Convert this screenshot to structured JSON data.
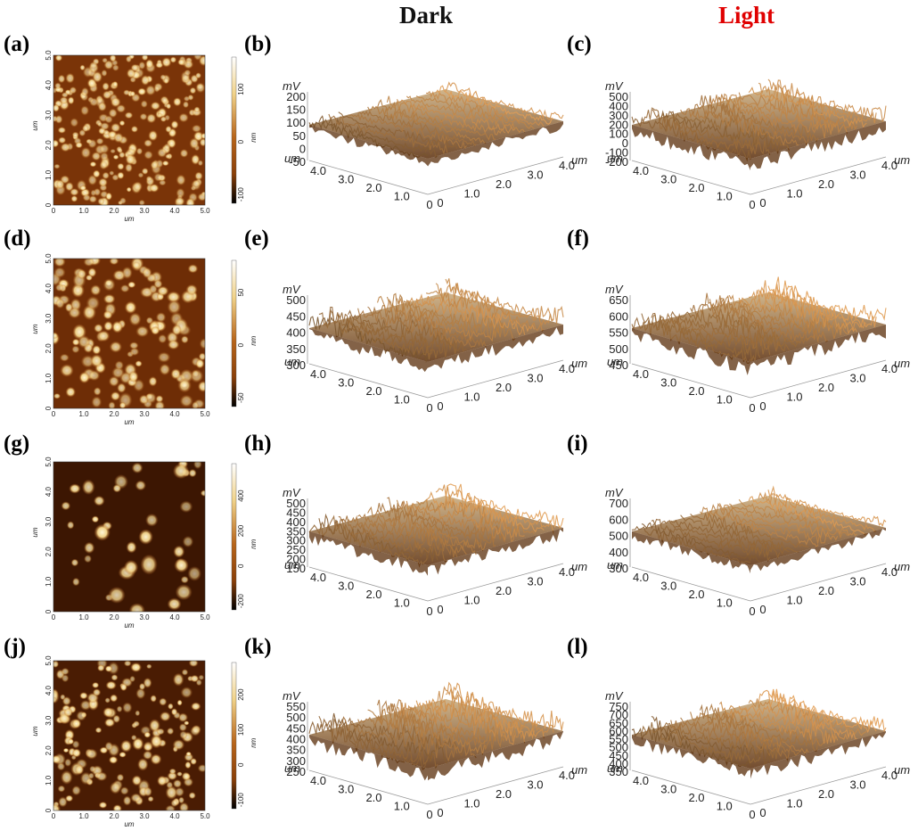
{
  "column_titles": {
    "dark": {
      "text": "Dark",
      "color": "#000000"
    },
    "light": {
      "text": "Light",
      "color": "#e00000"
    }
  },
  "colors": {
    "afm_dark": "#2a1000",
    "afm_mid": "#8a3f08",
    "afm_light": "#f1d38a",
    "afm_highlight": "#fff6d8",
    "surface_top": "#c9a877",
    "surface_shadow": "#5a2d0a"
  },
  "topography": [
    {
      "label": "(a)",
      "axis_unit": "um",
      "x_ticks": [
        "0",
        "1.0",
        "2.0",
        "3.0",
        "4.0",
        "5.0"
      ],
      "y_ticks": [
        "0",
        "1.0",
        "2.0",
        "3.0",
        "4.0",
        "5.0"
      ],
      "colorbar_unit": "nm",
      "colorbar_ticks": [
        "100",
        "0",
        "-100"
      ]
    },
    {
      "label": "(d)",
      "axis_unit": "um",
      "x_ticks": [
        "0",
        "1.0",
        "2.0",
        "3.0",
        "4.0",
        "5.0"
      ],
      "y_ticks": [
        "0",
        "1.0",
        "2.0",
        "3.0",
        "4.0",
        "5.0"
      ],
      "colorbar_unit": "nm",
      "colorbar_ticks": [
        "50",
        "0",
        "-50"
      ]
    },
    {
      "label": "(g)",
      "axis_unit": "um",
      "x_ticks": [
        "0",
        "1.0",
        "2.0",
        "3.0",
        "4.0",
        "5.0"
      ],
      "y_ticks": [
        "0",
        "1.0",
        "2.0",
        "3.0",
        "4.0",
        "5.0"
      ],
      "colorbar_unit": "nm",
      "colorbar_ticks": [
        "400",
        "200",
        "0",
        "-200"
      ]
    },
    {
      "label": "(j)",
      "axis_unit": "um",
      "x_ticks": [
        "0",
        "1.0",
        "2.0",
        "3.0",
        "4.0",
        "5.0"
      ],
      "y_ticks": [
        "0",
        "1.0",
        "2.0",
        "3.0",
        "4.0",
        "5.0"
      ],
      "colorbar_unit": "nm",
      "colorbar_ticks": [
        "200",
        "100",
        "0",
        "-100"
      ]
    }
  ],
  "potential_maps": [
    {
      "label": "(b)",
      "condition": "Dark",
      "z_unit": "mV",
      "z_ticks": [
        "200",
        "150",
        "100",
        "50",
        "0",
        "-50"
      ],
      "axis_unit": "um",
      "y_ticks": [
        "4.0",
        "3.0",
        "2.0",
        "1.0",
        "0"
      ],
      "x_ticks": [
        "0",
        "1.0",
        "2.0",
        "3.0",
        "4.0"
      ]
    },
    {
      "label": "(c)",
      "condition": "Light",
      "z_unit": "mV",
      "z_ticks": [
        "500",
        "400",
        "300",
        "200",
        "100",
        "0",
        "-100",
        "-200"
      ],
      "axis_unit": "um",
      "y_ticks": [
        "4.0",
        "3.0",
        "2.0",
        "1.0",
        "0"
      ],
      "x_ticks": [
        "0",
        "1.0",
        "2.0",
        "3.0",
        "4.0"
      ]
    },
    {
      "label": "(e)",
      "condition": "Dark",
      "z_unit": "mV",
      "z_ticks": [
        "500",
        "450",
        "400",
        "350",
        "300"
      ],
      "axis_unit": "um",
      "y_ticks": [
        "4.0",
        "3.0",
        "2.0",
        "1.0",
        "0"
      ],
      "x_ticks": [
        "0",
        "1.0",
        "2.0",
        "3.0",
        "4.0"
      ]
    },
    {
      "label": "(f)",
      "condition": "Light",
      "z_unit": "mV",
      "z_ticks": [
        "650",
        "600",
        "550",
        "500",
        "450"
      ],
      "axis_unit": "um",
      "y_ticks": [
        "4.0",
        "3.0",
        "2.0",
        "1.0",
        "0"
      ],
      "x_ticks": [
        "0",
        "1.0",
        "2.0",
        "3.0",
        "4.0"
      ]
    },
    {
      "label": "(h)",
      "condition": "Dark",
      "z_unit": "mV",
      "z_ticks": [
        "500",
        "450",
        "400",
        "350",
        "300",
        "250",
        "200",
        "150"
      ],
      "axis_unit": "um",
      "y_ticks": [
        "4.0",
        "3.0",
        "2.0",
        "1.0",
        "0"
      ],
      "x_ticks": [
        "0",
        "1.0",
        "2.0",
        "3.0",
        "4.0"
      ]
    },
    {
      "label": "(i)",
      "condition": "Light",
      "z_unit": "mV",
      "z_ticks": [
        "700",
        "600",
        "500",
        "400",
        "300"
      ],
      "axis_unit": "um",
      "y_ticks": [
        "4.0",
        "3.0",
        "2.0",
        "1.0",
        "0"
      ],
      "x_ticks": [
        "0",
        "1.0",
        "2.0",
        "3.0",
        "4.0"
      ]
    },
    {
      "label": "(k)",
      "condition": "Dark",
      "z_unit": "mV",
      "z_ticks": [
        "550",
        "500",
        "450",
        "400",
        "350",
        "300",
        "250"
      ],
      "axis_unit": "um",
      "y_ticks": [
        "4.0",
        "3.0",
        "2.0",
        "1.0",
        "0"
      ],
      "x_ticks": [
        "0",
        "1.0",
        "2.0",
        "3.0",
        "4.0"
      ]
    },
    {
      "label": "(l)",
      "condition": "Light",
      "z_unit": "mV",
      "z_ticks": [
        "750",
        "700",
        "650",
        "600",
        "550",
        "500",
        "450",
        "400",
        "350"
      ],
      "axis_unit": "um",
      "y_ticks": [
        "4.0",
        "3.0",
        "2.0",
        "1.0",
        "0"
      ],
      "x_ticks": [
        "0",
        "1.0",
        "2.0",
        "3.0",
        "4.0"
      ]
    }
  ]
}
